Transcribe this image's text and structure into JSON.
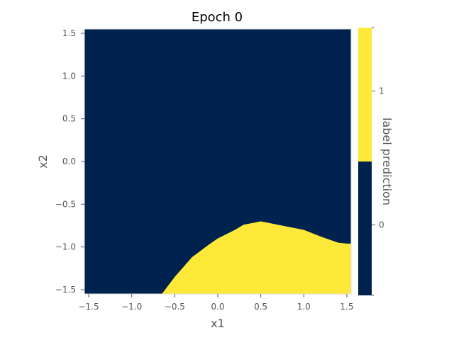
{
  "chart_data": {
    "type": "heatmap",
    "title": "Epoch 0",
    "xlabel": "x1",
    "ylabel": "x2",
    "xlim": [
      -1.55,
      1.55
    ],
    "ylim": [
      -1.55,
      1.55
    ],
    "xticks": [
      -1.5,
      -1.0,
      -0.5,
      0.0,
      0.5,
      1.0,
      1.5
    ],
    "xtick_labels": [
      "−1.5",
      "−1.0",
      "−0.5",
      "0.0",
      "0.5",
      "1.0",
      "1.5"
    ],
    "yticks": [
      -1.5,
      -1.0,
      -0.5,
      0.0,
      0.5,
      1.0,
      1.5
    ],
    "ytick_labels": [
      "−1.5",
      "−1.0",
      "−0.5",
      "0.0",
      "0.5",
      "1.0",
      "1.5"
    ],
    "grid": false,
    "classes": [
      0,
      1
    ],
    "class_colors": {
      "0": "#00224e",
      "1": "#fee838"
    },
    "decision_boundary": {
      "description_note": "class 1 region lies below boundary curve x2 = f(x1)",
      "x1": [
        -0.65,
        -0.5,
        -0.3,
        -0.1,
        0.0,
        0.2,
        0.3,
        0.5,
        0.6,
        0.8,
        1.0,
        1.2,
        1.4,
        1.5
      ],
      "x2": [
        -1.55,
        -1.35,
        -1.12,
        -0.97,
        -0.9,
        -0.8,
        -0.74,
        -0.7,
        -0.72,
        -0.76,
        -0.8,
        -0.88,
        -0.95,
        -0.96
      ]
    },
    "colorbar": {
      "label": "label prediction",
      "ticks": [
        0,
        1
      ],
      "tick_labels": [
        "0",
        "1"
      ],
      "segments": [
        {
          "class": 1,
          "color": "#fee838"
        },
        {
          "class": 0,
          "color": "#00224e"
        }
      ]
    }
  }
}
